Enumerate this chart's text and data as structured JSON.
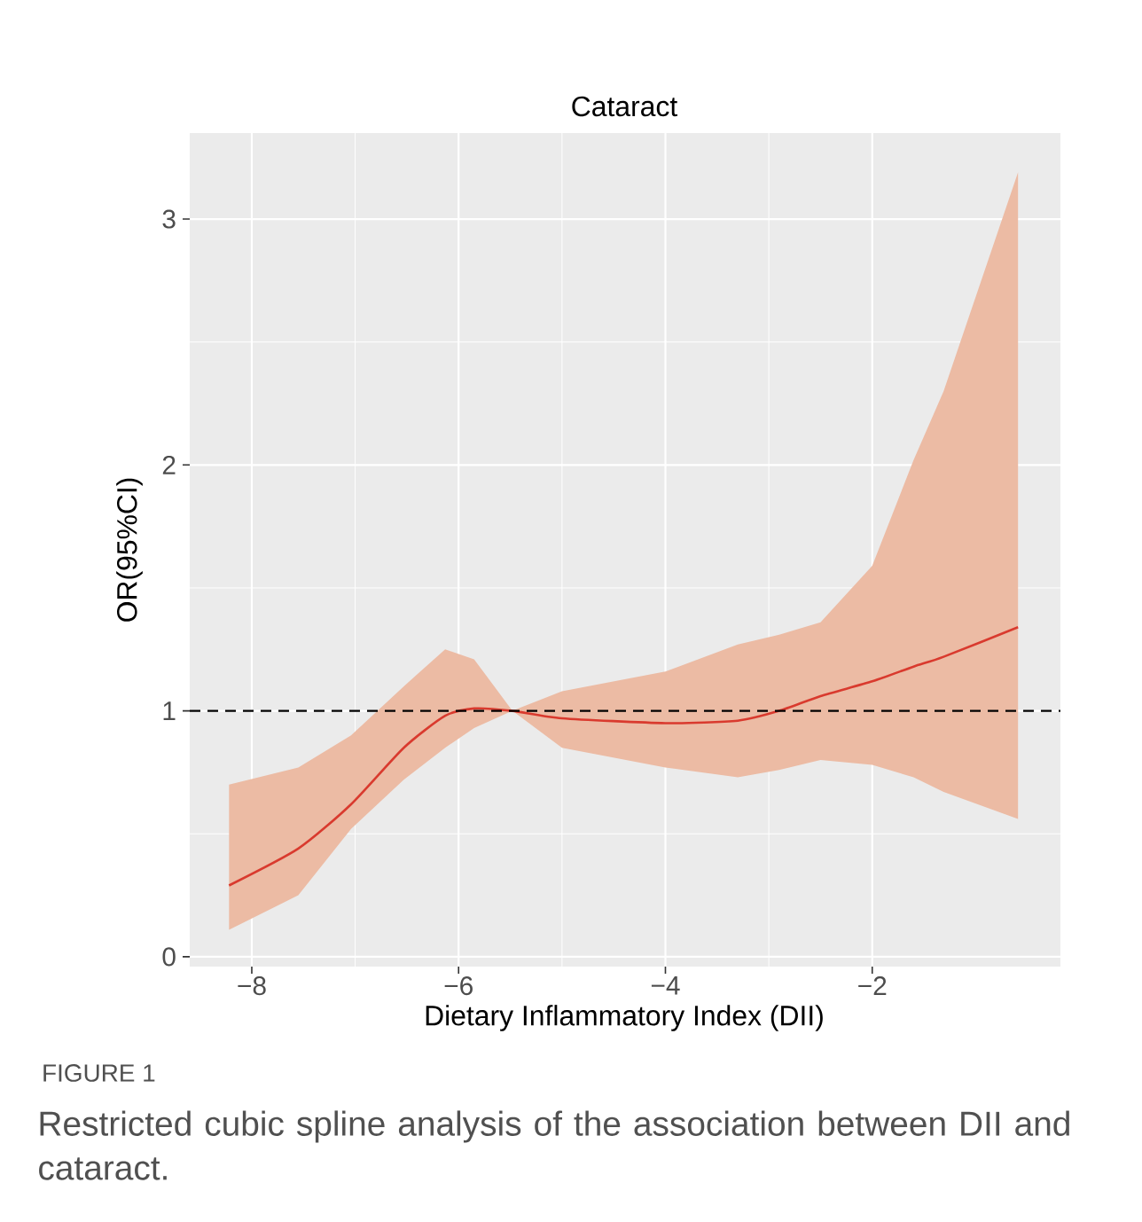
{
  "chart_data": {
    "type": "line",
    "title": "Cataract",
    "xlabel": "Dietary Inflammatory Index (DII)",
    "ylabel": "OR(95%CI)",
    "x": [
      -8.22,
      -7.55,
      -7.04,
      -6.53,
      -6.13,
      -5.85,
      -5.48,
      -5.0,
      -4.0,
      -3.3,
      -2.9,
      -2.5,
      -2.0,
      -1.6,
      -1.31,
      -0.59
    ],
    "series": [
      {
        "color": "#d93a2e",
        "values": [
          0.29,
          0.44,
          0.62,
          0.85,
          0.98,
          1.01,
          1.0,
          0.97,
          0.95,
          0.96,
          1.0,
          1.06,
          1.12,
          1.18,
          1.22,
          1.34
        ],
        "lower": [
          0.11,
          0.25,
          0.52,
          0.72,
          0.85,
          0.93,
          1.0,
          0.85,
          0.77,
          0.73,
          0.76,
          0.8,
          0.78,
          0.73,
          0.67,
          0.56
        ],
        "upper": [
          0.7,
          0.77,
          0.9,
          1.1,
          1.25,
          1.21,
          1.0,
          1.08,
          1.16,
          1.27,
          1.31,
          1.36,
          1.59,
          2.02,
          2.3,
          3.19
        ]
      }
    ],
    "xlim": [
      -8.6,
      -0.18
    ],
    "ylim": [
      -0.04,
      3.35
    ],
    "xticks": [
      {
        "value": -8,
        "label": "−8"
      },
      {
        "value": -6,
        "label": "−6"
      },
      {
        "value": -4,
        "label": "−4"
      },
      {
        "value": -2,
        "label": "−2"
      }
    ],
    "yticks": [
      0,
      1,
      2,
      3
    ],
    "grid": true,
    "line_style": "solid",
    "marker": "none",
    "ref_lines": [
      {
        "axis": "y",
        "value": 1,
        "color": "#000000",
        "line_style": "dashed"
      }
    ],
    "annotations": [
      "FIGURE 1",
      "Restricted cubic spline analysis of the association between DII and cataract."
    ]
  }
}
